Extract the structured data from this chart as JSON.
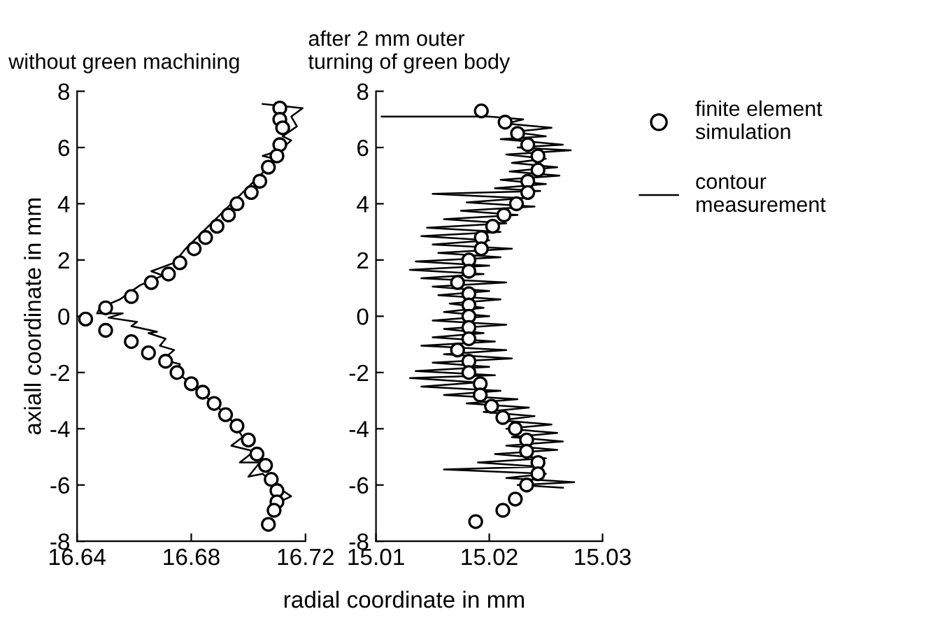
{
  "chart_data": [
    {
      "type": "scatter",
      "title": "without green machining",
      "xlabel": "radial coordinate in mm",
      "ylabel": "axiall coordinate in mm",
      "xlim": [
        16.64,
        16.72
      ],
      "xticks": [
        16.64,
        16.68,
        16.72
      ],
      "ylim": [
        -8,
        8
      ],
      "yticks": [
        -8,
        -6,
        -4,
        -2,
        0,
        2,
        4,
        6,
        8
      ],
      "grid": false,
      "series": [
        {
          "marker": "circle",
          "color": "#000000",
          "x": [
            16.711,
            16.711,
            16.712,
            16.711,
            16.71,
            16.707,
            16.704,
            16.701,
            16.696,
            16.693,
            16.689,
            16.685,
            16.681,
            16.676,
            16.672,
            16.666,
            16.659,
            16.65,
            16.643,
            16.65,
            16.659,
            16.665,
            16.671,
            16.675,
            16.68,
            16.684,
            16.688,
            16.692,
            16.696,
            16.7,
            16.703,
            16.706,
            16.708,
            16.71,
            16.71,
            16.709,
            16.707
          ],
          "values": [
            7.4,
            7.0,
            6.7,
            6.1,
            5.7,
            5.3,
            4.8,
            4.4,
            4.0,
            3.6,
            3.2,
            2.8,
            2.4,
            1.9,
            1.5,
            1.2,
            0.7,
            0.3,
            -0.1,
            -0.5,
            -0.9,
            -1.3,
            -1.6,
            -2.0,
            -2.4,
            -2.7,
            -3.1,
            -3.5,
            -3.9,
            -4.4,
            -4.9,
            -5.3,
            -5.8,
            -6.2,
            -6.6,
            -6.9,
            -7.4
          ]
        },
        {
          "type": "line",
          "marker": "none",
          "line_style": "solid",
          "color": "#000000",
          "x": [
            16.705,
            16.719,
            16.715,
            16.717,
            16.712,
            16.715,
            16.711,
            16.705,
            16.709,
            16.706,
            16.702,
            16.698,
            16.693,
            16.688,
            16.683,
            16.678,
            16.674,
            16.666,
            16.67,
            16.662,
            16.655,
            16.648,
            16.647,
            16.656,
            16.651,
            16.661,
            16.659,
            16.668,
            16.665,
            16.671,
            16.669,
            16.674,
            16.67,
            16.676,
            16.675,
            16.68,
            16.685,
            16.69,
            16.695,
            16.698,
            16.694,
            16.702,
            16.697,
            16.704,
            16.7,
            16.705,
            16.709,
            16.715,
            16.711
          ],
          "values": [
            7.55,
            7.4,
            7.1,
            6.75,
            6.4,
            6.25,
            5.9,
            5.7,
            5.6,
            5.2,
            4.8,
            4.4,
            3.9,
            3.4,
            2.9,
            2.4,
            1.9,
            1.6,
            1.45,
            1.1,
            0.6,
            0.3,
            0.1,
            0.1,
            -0.05,
            -0.2,
            -0.35,
            -0.55,
            -0.6,
            -0.8,
            -1.05,
            -1.2,
            -1.55,
            -1.7,
            -2.0,
            -2.4,
            -2.85,
            -3.3,
            -3.8,
            -4.3,
            -4.6,
            -4.8,
            -5.2,
            -5.2,
            -5.7,
            -5.6,
            -6.0,
            -6.4,
            -6.6
          ]
        }
      ]
    },
    {
      "type": "scatter",
      "title": "after 2 mm outer\nturning of green body",
      "xlim": [
        15.01,
        15.03
      ],
      "xticks": [
        15.01,
        15.02,
        15.03
      ],
      "ylim": [
        -8,
        8
      ],
      "yticks": [
        -8,
        -6,
        -4,
        -2,
        0,
        2,
        4,
        6,
        8
      ],
      "grid": false,
      "legend": "right",
      "series": [
        {
          "name": "finite element\nsimulation",
          "marker": "circle",
          "color": "#000000",
          "x": [
            15.0193,
            15.0214,
            15.0225,
            15.0234,
            15.0243,
            15.0243,
            15.0234,
            15.0234,
            15.0224,
            15.0213,
            15.0203,
            15.0193,
            15.0193,
            15.0182,
            15.0182,
            15.0172,
            15.0182,
            15.0182,
            15.0182,
            15.0182,
            15.0182,
            15.0172,
            15.0182,
            15.0182,
            15.0192,
            15.0192,
            15.0202,
            15.0212,
            15.0223,
            15.0233,
            15.0233,
            15.0243,
            15.0243,
            15.0233,
            15.0223,
            15.0212,
            15.0188
          ],
          "values": [
            7.3,
            6.9,
            6.5,
            6.1,
            5.7,
            5.2,
            4.8,
            4.4,
            4.0,
            3.6,
            3.2,
            2.8,
            2.4,
            2.0,
            1.6,
            1.2,
            0.8,
            0.4,
            0.0,
            -0.4,
            -0.8,
            -1.2,
            -1.6,
            -2.0,
            -2.4,
            -2.8,
            -3.2,
            -3.6,
            -4.0,
            -4.4,
            -4.8,
            -5.2,
            -5.6,
            -6.0,
            -6.5,
            -6.9,
            -7.3
          ]
        },
        {
          "name": "contour\nmeasurement",
          "type": "line",
          "marker": "none",
          "line_style": "solid",
          "color": "#000000",
          "x": [
            15.0105,
            15.02,
            15.023,
            15.0215,
            15.0255,
            15.022,
            15.025,
            15.021,
            15.0265,
            15.0225,
            15.0272,
            15.0215,
            15.025,
            15.022,
            15.026,
            15.0218,
            15.0262,
            15.021,
            15.025,
            15.0205,
            15.0245,
            15.015,
            15.023,
            15.018,
            15.024,
            15.0175,
            15.0225,
            15.016,
            15.0215,
            15.0145,
            15.021,
            15.014,
            15.02,
            15.015,
            15.022,
            15.0155,
            15.021,
            15.0135,
            15.02,
            15.013,
            15.0195,
            15.014,
            15.0215,
            15.015,
            15.02,
            15.0155,
            15.021,
            15.0165,
            15.0195,
            15.016,
            15.02,
            15.015,
            15.0215,
            15.016,
            15.0195,
            15.015,
            15.0205,
            15.014,
            15.0215,
            15.016,
            15.022,
            15.015,
            15.02,
            15.0135,
            15.0205,
            15.013,
            15.019,
            15.014,
            15.021,
            15.016,
            15.0225,
            15.018,
            15.0235,
            15.0195,
            15.024,
            15.021,
            15.0255,
            15.0215,
            15.026,
            15.022,
            15.0265,
            15.0215,
            15.026,
            15.0205,
            15.025,
            15.019,
            15.0245,
            15.016,
            15.025,
            15.0215,
            15.0275,
            15.0225,
            15.0265
          ],
          "values": [
            7.1,
            7.1,
            7.0,
            6.85,
            6.7,
            6.55,
            6.4,
            6.3,
            6.1,
            6.0,
            5.9,
            5.75,
            5.6,
            5.45,
            5.3,
            5.15,
            5.0,
            4.85,
            4.7,
            4.55,
            4.45,
            4.35,
            4.2,
            4.05,
            3.9,
            3.75,
            3.6,
            3.45,
            3.3,
            3.15,
            3.0,
            2.85,
            2.7,
            2.55,
            2.4,
            2.25,
            2.1,
            1.95,
            1.8,
            1.65,
            1.5,
            1.35,
            1.2,
            1.05,
            0.9,
            0.75,
            0.6,
            0.45,
            0.3,
            0.15,
            0.0,
            -0.15,
            -0.3,
            -0.45,
            -0.6,
            -0.75,
            -0.9,
            -1.05,
            -1.2,
            -1.35,
            -1.5,
            -1.65,
            -1.8,
            -1.95,
            -2.1,
            -2.2,
            -2.35,
            -2.5,
            -2.65,
            -2.8,
            -2.95,
            -3.1,
            -3.25,
            -3.4,
            -3.55,
            -3.7,
            -3.85,
            -4.0,
            -4.15,
            -4.3,
            -4.45,
            -4.6,
            -4.75,
            -4.9,
            -5.05,
            -5.2,
            -5.35,
            -5.45,
            -5.6,
            -5.75,
            -5.9,
            -6.0,
            -6.1
          ]
        }
      ]
    }
  ]
}
